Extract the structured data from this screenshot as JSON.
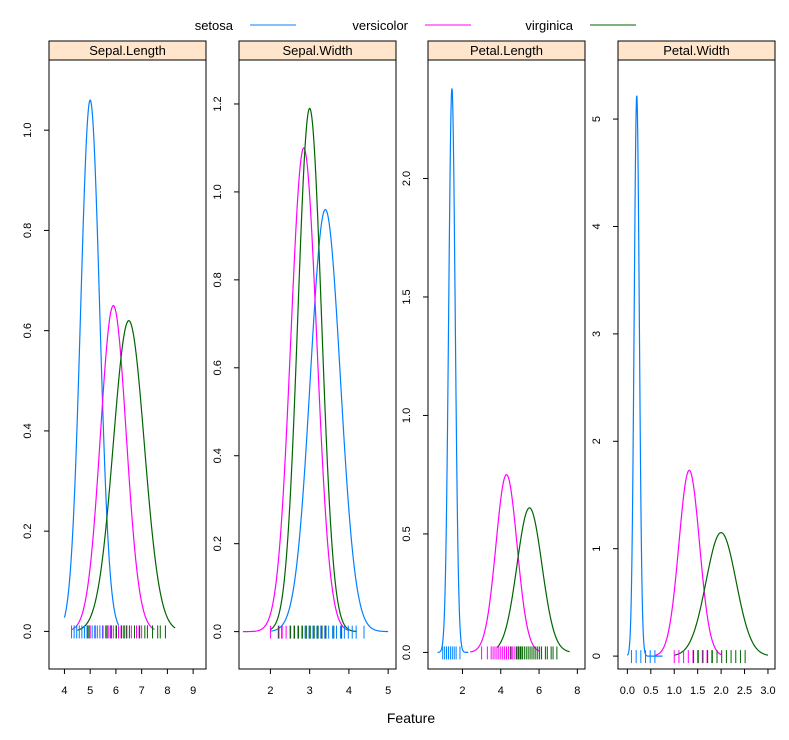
{
  "chart_data": {
    "type": "line",
    "xlabel": "Feature",
    "legend": {
      "placement": "top",
      "entries": [
        {
          "name": "setosa",
          "color": "#0080ff"
        },
        {
          "name": "versicolor",
          "color": "#ff00ff"
        },
        {
          "name": "virginica",
          "color": "#006400"
        }
      ]
    },
    "panels": [
      {
        "title": "Sepal.Length",
        "xlim": [
          3.4,
          9.5
        ],
        "ylim": [
          -0.075,
          1.14
        ],
        "xticks": [
          4,
          5,
          6,
          7,
          8,
          9
        ],
        "xtick_labels": [
          "4",
          "5",
          "6",
          "7",
          "8",
          "9"
        ],
        "yticks": [
          0,
          0.2,
          0.4,
          0.6,
          0.8,
          1.0
        ],
        "ytick_labels": [
          "0.0",
          "0.2",
          "0.4",
          "0.6",
          "0.8",
          "1.0"
        ],
        "series": [
          {
            "name": "setosa",
            "peak": 5.0,
            "spread": 0.37,
            "height": 1.06,
            "range": [
              4.0,
              6.1
            ]
          },
          {
            "name": "versicolor",
            "peak": 5.9,
            "spread": 0.5,
            "height": 0.65,
            "range": [
              4.3,
              7.5
            ]
          },
          {
            "name": "virginica",
            "peak": 6.5,
            "spread": 0.6,
            "height": 0.62,
            "range": [
              4.5,
              8.3
            ]
          }
        ],
        "rug": [
          {
            "name": "setosa",
            "values": [
              4.3,
              4.4,
              4.5,
              4.6,
              4.7,
              4.8,
              4.9,
              5.0,
              5.1,
              5.2,
              5.3,
              5.4,
              5.5,
              5.7,
              5.8
            ]
          },
          {
            "name": "versicolor",
            "values": [
              4.9,
              5.0,
              5.2,
              5.5,
              5.6,
              5.7,
              5.8,
              5.9,
              6.0,
              6.1,
              6.2,
              6.3,
              6.4,
              6.6,
              6.8,
              6.9,
              7.0
            ]
          },
          {
            "name": "virginica",
            "values": [
              4.9,
              5.6,
              5.8,
              6.0,
              6.2,
              6.3,
              6.4,
              6.5,
              6.7,
              6.9,
              7.1,
              7.2,
              7.4,
              7.6,
              7.7,
              7.9
            ]
          }
        ]
      },
      {
        "title": "Sepal.Width",
        "xlim": [
          1.2,
          5.2
        ],
        "ylim": [
          -0.085,
          1.3
        ],
        "xticks": [
          2,
          3,
          4,
          5
        ],
        "xtick_labels": [
          "2",
          "3",
          "4",
          "5"
        ],
        "yticks": [
          0,
          0.2,
          0.4,
          0.6,
          0.8,
          1.0,
          1.2
        ],
        "ytick_labels": [
          "0.0",
          "0.2",
          "0.4",
          "0.6",
          "0.8",
          "1.0",
          "1.2"
        ],
        "series": [
          {
            "name": "setosa",
            "peak": 3.4,
            "spread": 0.38,
            "height": 0.96,
            "range": [
              2.0,
              5.0
            ]
          },
          {
            "name": "versicolor",
            "peak": 2.85,
            "spread": 0.33,
            "height": 1.1,
            "range": [
              1.3,
              4.0
            ]
          },
          {
            "name": "virginica",
            "peak": 3.0,
            "spread": 0.3,
            "height": 1.19,
            "range": [
              2.0,
              4.2
            ]
          }
        ],
        "rug": [
          {
            "name": "setosa",
            "values": [
              2.3,
              2.9,
              3.0,
              3.1,
              3.2,
              3.3,
              3.4,
              3.5,
              3.6,
              3.7,
              3.8,
              3.9,
              4.0,
              4.1,
              4.2,
              4.4
            ]
          },
          {
            "name": "versicolor",
            "values": [
              2.0,
              2.2,
              2.3,
              2.4,
              2.5,
              2.6,
              2.7,
              2.8,
              2.9,
              3.0,
              3.1,
              3.2,
              3.3,
              3.4
            ]
          },
          {
            "name": "virginica",
            "values": [
              2.2,
              2.5,
              2.6,
              2.7,
              2.8,
              2.9,
              3.0,
              3.1,
              3.2,
              3.3,
              3.4,
              3.6,
              3.8
            ]
          }
        ]
      },
      {
        "title": "Petal.Length",
        "xlim": [
          0.2,
          8.4
        ],
        "ylim": [
          -0.07,
          2.5
        ],
        "xticks": [
          2,
          4,
          6,
          8
        ],
        "xtick_labels": [
          "2",
          "4",
          "6",
          "8"
        ],
        "yticks": [
          0,
          0.5,
          1.0,
          1.5,
          2.0
        ],
        "ytick_labels": [
          "0.0",
          "0.5",
          "1.0",
          "1.5",
          "2.0"
        ],
        "series": [
          {
            "name": "setosa",
            "peak": 1.45,
            "spread": 0.17,
            "height": 2.38,
            "range": [
              0.7,
              2.3
            ]
          },
          {
            "name": "versicolor",
            "peak": 4.3,
            "spread": 0.55,
            "height": 0.75,
            "range": [
              2.4,
              6.0
            ]
          },
          {
            "name": "virginica",
            "peak": 5.5,
            "spread": 0.65,
            "height": 0.61,
            "range": [
              3.8,
              7.6
            ]
          }
        ],
        "rug": [
          {
            "name": "setosa",
            "values": [
              1.0,
              1.1,
              1.2,
              1.3,
              1.4,
              1.5,
              1.6,
              1.7,
              1.9
            ]
          },
          {
            "name": "versicolor",
            "values": [
              3.0,
              3.3,
              3.5,
              3.6,
              3.7,
              3.8,
              3.9,
              4.0,
              4.1,
              4.2,
              4.3,
              4.4,
              4.5,
              4.6,
              4.7,
              4.8,
              4.9,
              5.0,
              5.1
            ]
          },
          {
            "name": "virginica",
            "values": [
              4.5,
              4.8,
              4.9,
              5.0,
              5.1,
              5.2,
              5.3,
              5.4,
              5.5,
              5.6,
              5.7,
              5.8,
              5.9,
              6.0,
              6.1,
              6.3,
              6.4,
              6.6,
              6.7,
              6.9
            ]
          }
        ]
      },
      {
        "title": "Petal.Width",
        "xlim": [
          -0.2,
          3.15
        ],
        "ylim": [
          -0.12,
          5.55
        ],
        "xticks": [
          0,
          0.5,
          1.0,
          1.5,
          2.0,
          2.5,
          3.0
        ],
        "xtick_labels": [
          "0.0",
          "0.5",
          "1.0",
          "1.5",
          "2.0",
          "2.5",
          "3.0"
        ],
        "yticks": [
          0,
          1,
          2,
          3,
          4,
          5
        ],
        "ytick_labels": [
          "0",
          "1",
          "2",
          "3",
          "4",
          "5"
        ],
        "series": [
          {
            "name": "setosa",
            "peak": 0.2,
            "spread": 0.055,
            "height": 5.22,
            "range": [
              0.0,
              0.75
            ]
          },
          {
            "name": "versicolor",
            "peak": 1.32,
            "spread": 0.22,
            "height": 1.73,
            "range": [
              0.6,
              2.0
            ]
          },
          {
            "name": "virginica",
            "peak": 2.0,
            "spread": 0.32,
            "height": 1.15,
            "range": [
              1.0,
              3.0
            ]
          }
        ],
        "rug": [
          {
            "name": "setosa",
            "values": [
              0.1,
              0.2,
              0.3,
              0.4,
              0.5,
              0.6
            ]
          },
          {
            "name": "versicolor",
            "values": [
              1.0,
              1.1,
              1.2,
              1.3,
              1.4,
              1.5,
              1.6,
              1.7,
              1.8
            ]
          },
          {
            "name": "virginica",
            "values": [
              1.4,
              1.5,
              1.6,
              1.7,
              1.8,
              1.9,
              2.0,
              2.1,
              2.2,
              2.3,
              2.4,
              2.5
            ]
          }
        ]
      }
    ]
  }
}
